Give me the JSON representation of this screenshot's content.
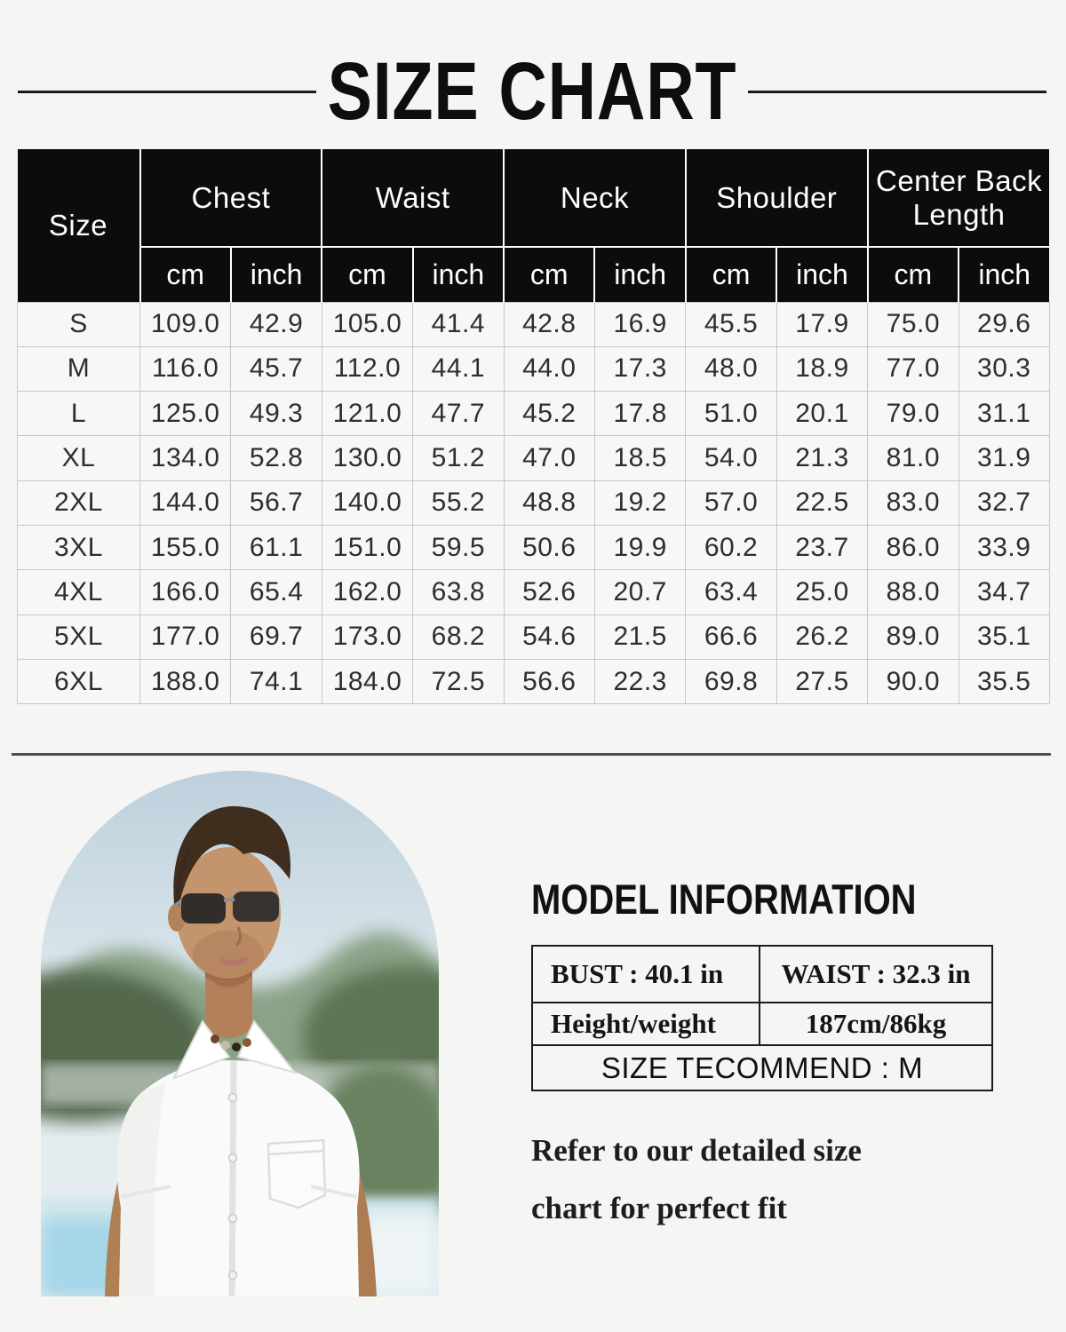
{
  "page": {
    "title": "SIZE CHART"
  },
  "size_table": {
    "size_header": "Size",
    "groups": [
      "Chest",
      "Waist",
      "Neck",
      "Shoulder",
      "Center Back Length"
    ],
    "units": {
      "cm": "cm",
      "inch": "inch"
    },
    "rows": [
      {
        "size": "S",
        "values": [
          "109.0",
          "42.9",
          "105.0",
          "41.4",
          "42.8",
          "16.9",
          "45.5",
          "17.9",
          "75.0",
          "29.6"
        ]
      },
      {
        "size": "M",
        "values": [
          "116.0",
          "45.7",
          "112.0",
          "44.1",
          "44.0",
          "17.3",
          "48.0",
          "18.9",
          "77.0",
          "30.3"
        ]
      },
      {
        "size": "L",
        "values": [
          "125.0",
          "49.3",
          "121.0",
          "47.7",
          "45.2",
          "17.8",
          "51.0",
          "20.1",
          "79.0",
          "31.1"
        ]
      },
      {
        "size": "XL",
        "values": [
          "134.0",
          "52.8",
          "130.0",
          "51.2",
          "47.0",
          "18.5",
          "54.0",
          "21.3",
          "81.0",
          "31.9"
        ]
      },
      {
        "size": "2XL",
        "values": [
          "144.0",
          "56.7",
          "140.0",
          "55.2",
          "48.8",
          "19.2",
          "57.0",
          "22.5",
          "83.0",
          "32.7"
        ]
      },
      {
        "size": "3XL",
        "values": [
          "155.0",
          "61.1",
          "151.0",
          "59.5",
          "50.6",
          "19.9",
          "60.2",
          "23.7",
          "86.0",
          "33.9"
        ]
      },
      {
        "size": "4XL",
        "values": [
          "166.0",
          "65.4",
          "162.0",
          "63.8",
          "52.6",
          "20.7",
          "63.4",
          "25.0",
          "88.0",
          "34.7"
        ]
      },
      {
        "size": "5XL",
        "values": [
          "177.0",
          "69.7",
          "173.0",
          "68.2",
          "54.6",
          "21.5",
          "66.6",
          "26.2",
          "89.0",
          "35.1"
        ]
      },
      {
        "size": "6XL",
        "values": [
          "188.0",
          "74.1",
          "184.0",
          "72.5",
          "56.6",
          "22.3",
          "69.8",
          "27.5",
          "90.0",
          "35.5"
        ]
      }
    ]
  },
  "model_info": {
    "heading": "MODEL INFORMATION",
    "bust": "BUST : 40.1 in",
    "waist": "WAIST : 32.3 in",
    "height_weight_label": "Height/weight",
    "height_weight_value": "187cm/86kg",
    "size_recommend": "SIZE TECOMMEND : M",
    "note": "Refer to our detailed size chart for perfect fit"
  },
  "colors": {
    "background": "#f5f5f3",
    "header_bg": "#0c0c0c",
    "header_text": "#ffffff",
    "body_grid": "#c7c7c5",
    "divider": "#4f4f4f",
    "info_border": "#1c1c1c"
  }
}
